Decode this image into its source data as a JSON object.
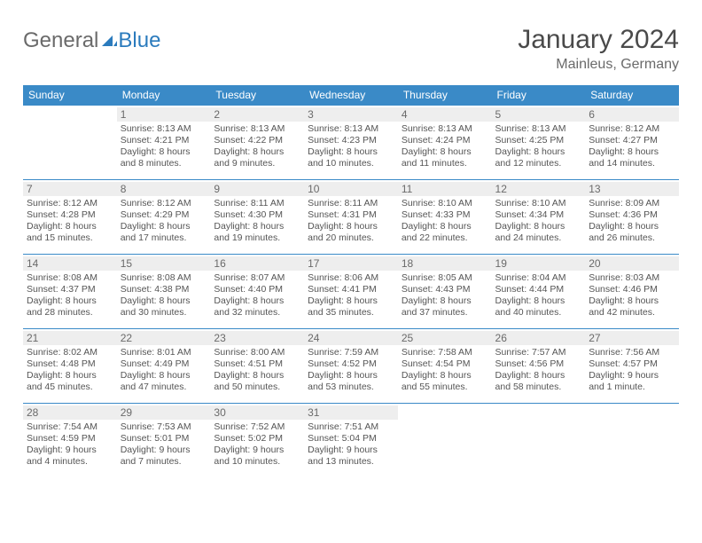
{
  "brand": {
    "part1": "General",
    "part2": "Blue"
  },
  "title": "January 2024",
  "location": "Mainleus, Germany",
  "colors": {
    "header_bg": "#3a8ac7",
    "header_text": "#ffffff",
    "daynum_bg": "#eeeeee",
    "border": "#3a8ac7",
    "brand_accent": "#2b7bbd"
  },
  "dayHeaders": [
    "Sunday",
    "Monday",
    "Tuesday",
    "Wednesday",
    "Thursday",
    "Friday",
    "Saturday"
  ],
  "weeks": [
    [
      {
        "num": "",
        "sunrise": "",
        "sunset": "",
        "daylight": ""
      },
      {
        "num": "1",
        "sunrise": "Sunrise: 8:13 AM",
        "sunset": "Sunset: 4:21 PM",
        "daylight": "Daylight: 8 hours and 8 minutes."
      },
      {
        "num": "2",
        "sunrise": "Sunrise: 8:13 AM",
        "sunset": "Sunset: 4:22 PM",
        "daylight": "Daylight: 8 hours and 9 minutes."
      },
      {
        "num": "3",
        "sunrise": "Sunrise: 8:13 AM",
        "sunset": "Sunset: 4:23 PM",
        "daylight": "Daylight: 8 hours and 10 minutes."
      },
      {
        "num": "4",
        "sunrise": "Sunrise: 8:13 AM",
        "sunset": "Sunset: 4:24 PM",
        "daylight": "Daylight: 8 hours and 11 minutes."
      },
      {
        "num": "5",
        "sunrise": "Sunrise: 8:13 AM",
        "sunset": "Sunset: 4:25 PM",
        "daylight": "Daylight: 8 hours and 12 minutes."
      },
      {
        "num": "6",
        "sunrise": "Sunrise: 8:12 AM",
        "sunset": "Sunset: 4:27 PM",
        "daylight": "Daylight: 8 hours and 14 minutes."
      }
    ],
    [
      {
        "num": "7",
        "sunrise": "Sunrise: 8:12 AM",
        "sunset": "Sunset: 4:28 PM",
        "daylight": "Daylight: 8 hours and 15 minutes."
      },
      {
        "num": "8",
        "sunrise": "Sunrise: 8:12 AM",
        "sunset": "Sunset: 4:29 PM",
        "daylight": "Daylight: 8 hours and 17 minutes."
      },
      {
        "num": "9",
        "sunrise": "Sunrise: 8:11 AM",
        "sunset": "Sunset: 4:30 PM",
        "daylight": "Daylight: 8 hours and 19 minutes."
      },
      {
        "num": "10",
        "sunrise": "Sunrise: 8:11 AM",
        "sunset": "Sunset: 4:31 PM",
        "daylight": "Daylight: 8 hours and 20 minutes."
      },
      {
        "num": "11",
        "sunrise": "Sunrise: 8:10 AM",
        "sunset": "Sunset: 4:33 PM",
        "daylight": "Daylight: 8 hours and 22 minutes."
      },
      {
        "num": "12",
        "sunrise": "Sunrise: 8:10 AM",
        "sunset": "Sunset: 4:34 PM",
        "daylight": "Daylight: 8 hours and 24 minutes."
      },
      {
        "num": "13",
        "sunrise": "Sunrise: 8:09 AM",
        "sunset": "Sunset: 4:36 PM",
        "daylight": "Daylight: 8 hours and 26 minutes."
      }
    ],
    [
      {
        "num": "14",
        "sunrise": "Sunrise: 8:08 AM",
        "sunset": "Sunset: 4:37 PM",
        "daylight": "Daylight: 8 hours and 28 minutes."
      },
      {
        "num": "15",
        "sunrise": "Sunrise: 8:08 AM",
        "sunset": "Sunset: 4:38 PM",
        "daylight": "Daylight: 8 hours and 30 minutes."
      },
      {
        "num": "16",
        "sunrise": "Sunrise: 8:07 AM",
        "sunset": "Sunset: 4:40 PM",
        "daylight": "Daylight: 8 hours and 32 minutes."
      },
      {
        "num": "17",
        "sunrise": "Sunrise: 8:06 AM",
        "sunset": "Sunset: 4:41 PM",
        "daylight": "Daylight: 8 hours and 35 minutes."
      },
      {
        "num": "18",
        "sunrise": "Sunrise: 8:05 AM",
        "sunset": "Sunset: 4:43 PM",
        "daylight": "Daylight: 8 hours and 37 minutes."
      },
      {
        "num": "19",
        "sunrise": "Sunrise: 8:04 AM",
        "sunset": "Sunset: 4:44 PM",
        "daylight": "Daylight: 8 hours and 40 minutes."
      },
      {
        "num": "20",
        "sunrise": "Sunrise: 8:03 AM",
        "sunset": "Sunset: 4:46 PM",
        "daylight": "Daylight: 8 hours and 42 minutes."
      }
    ],
    [
      {
        "num": "21",
        "sunrise": "Sunrise: 8:02 AM",
        "sunset": "Sunset: 4:48 PM",
        "daylight": "Daylight: 8 hours and 45 minutes."
      },
      {
        "num": "22",
        "sunrise": "Sunrise: 8:01 AM",
        "sunset": "Sunset: 4:49 PM",
        "daylight": "Daylight: 8 hours and 47 minutes."
      },
      {
        "num": "23",
        "sunrise": "Sunrise: 8:00 AM",
        "sunset": "Sunset: 4:51 PM",
        "daylight": "Daylight: 8 hours and 50 minutes."
      },
      {
        "num": "24",
        "sunrise": "Sunrise: 7:59 AM",
        "sunset": "Sunset: 4:52 PM",
        "daylight": "Daylight: 8 hours and 53 minutes."
      },
      {
        "num": "25",
        "sunrise": "Sunrise: 7:58 AM",
        "sunset": "Sunset: 4:54 PM",
        "daylight": "Daylight: 8 hours and 55 minutes."
      },
      {
        "num": "26",
        "sunrise": "Sunrise: 7:57 AM",
        "sunset": "Sunset: 4:56 PM",
        "daylight": "Daylight: 8 hours and 58 minutes."
      },
      {
        "num": "27",
        "sunrise": "Sunrise: 7:56 AM",
        "sunset": "Sunset: 4:57 PM",
        "daylight": "Daylight: 9 hours and 1 minute."
      }
    ],
    [
      {
        "num": "28",
        "sunrise": "Sunrise: 7:54 AM",
        "sunset": "Sunset: 4:59 PM",
        "daylight": "Daylight: 9 hours and 4 minutes."
      },
      {
        "num": "29",
        "sunrise": "Sunrise: 7:53 AM",
        "sunset": "Sunset: 5:01 PM",
        "daylight": "Daylight: 9 hours and 7 minutes."
      },
      {
        "num": "30",
        "sunrise": "Sunrise: 7:52 AM",
        "sunset": "Sunset: 5:02 PM",
        "daylight": "Daylight: 9 hours and 10 minutes."
      },
      {
        "num": "31",
        "sunrise": "Sunrise: 7:51 AM",
        "sunset": "Sunset: 5:04 PM",
        "daylight": "Daylight: 9 hours and 13 minutes."
      },
      {
        "num": "",
        "sunrise": "",
        "sunset": "",
        "daylight": ""
      },
      {
        "num": "",
        "sunrise": "",
        "sunset": "",
        "daylight": ""
      },
      {
        "num": "",
        "sunrise": "",
        "sunset": "",
        "daylight": ""
      }
    ]
  ]
}
